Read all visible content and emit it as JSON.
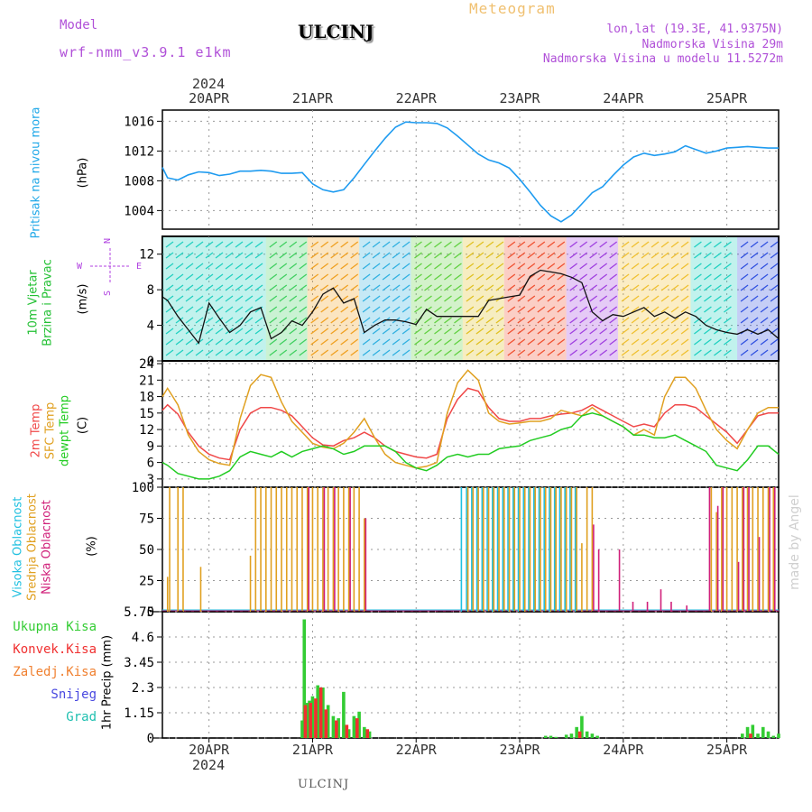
{
  "header": {
    "model_label": "Model",
    "model_name": "wrf-nmm_v3.9.1 e1km",
    "station": "ULCINJ",
    "product": "Meteogram",
    "lonlat": "lon,lat (19.3E, 41.9375N)",
    "elevation": "Nadmorska Visina 29m",
    "model_elevation": "Nadmorska Visina u modelu 11.5272m",
    "year_top": "2024",
    "year_bottom": "2024",
    "footer_station": "ULCINJ",
    "watermark": "made by Angel"
  },
  "colors": {
    "pressure": "#1e9bf0",
    "wind_green": "#22c033",
    "temp": "#f04848",
    "sfc": "#e0a020",
    "dew": "#22cc22",
    "high_cloud": "#20c0e0",
    "mid_cloud": "#e0a020",
    "low_cloud": "#d0207a",
    "total_precip": "#33cc33",
    "conv_precip": "#f03030",
    "frozen": "#f08030",
    "snow": "#4848e0",
    "hail": "#20c0b0",
    "wind_mag": "#b040e0"
  },
  "chart_data": [
    {
      "type": "line",
      "panel": "pressure",
      "ylabel_lines": [
        "Pritisak na nivou mora"
      ],
      "unit": "(hPa)",
      "ylim": [
        1001.5,
        1017.5
      ],
      "yticks": [
        1004,
        1008,
        1012,
        1016
      ],
      "grid": true,
      "x_days": [
        19.55,
        19.6,
        19.7,
        19.8,
        19.9,
        20.0,
        20.1,
        20.2,
        20.3,
        20.4,
        20.5,
        20.6,
        20.7,
        20.8,
        20.9,
        21.0,
        21.1,
        21.2,
        21.3,
        21.4,
        21.5,
        21.6,
        21.7,
        21.8,
        21.9,
        22.0,
        22.1,
        22.2,
        22.3,
        22.4,
        22.5,
        22.6,
        22.7,
        22.8,
        22.9,
        23.0,
        23.1,
        23.2,
        23.3,
        23.4,
        23.5,
        23.6,
        23.7,
        23.8,
        23.9,
        24.0,
        24.1,
        24.2,
        24.3,
        24.4,
        24.5,
        24.6,
        24.7,
        24.8,
        24.9,
        25.0,
        25.1,
        25.2,
        25.3,
        25.4,
        25.5
      ],
      "values": [
        1009.8,
        1008.4,
        1008.1,
        1008.8,
        1009.2,
        1009.1,
        1008.7,
        1008.9,
        1009.3,
        1009.3,
        1009.4,
        1009.3,
        1009.0,
        1009.0,
        1009.1,
        1007.6,
        1006.8,
        1006.5,
        1006.8,
        1008.4,
        1010.2,
        1012.0,
        1013.7,
        1015.2,
        1015.9,
        1015.8,
        1015.8,
        1015.7,
        1015.1,
        1014.0,
        1012.8,
        1011.6,
        1010.8,
        1010.4,
        1009.7,
        1008.2,
        1006.5,
        1004.7,
        1003.3,
        1002.5,
        1003.4,
        1004.9,
        1006.4,
        1007.2,
        1008.7,
        1010.1,
        1011.2,
        1011.7,
        1011.4,
        1011.6,
        1011.9,
        1012.7,
        1012.2,
        1011.7,
        1012.0,
        1012.4,
        1012.5,
        1012.6,
        1012.5,
        1012.4,
        1012.4
      ]
    },
    {
      "type": "line",
      "panel": "wind",
      "ylabel_lines": [
        "10m Vjetar",
        "Brzina i Pravac"
      ],
      "unit": "(m/s)",
      "ylim": [
        0,
        14
      ],
      "yticks": [
        0,
        4,
        8,
        12
      ],
      "grid": true,
      "compass": [
        "N",
        "W",
        "E",
        "S"
      ],
      "x_days": [
        19.55,
        19.6,
        19.7,
        19.8,
        19.9,
        20.0,
        20.1,
        20.2,
        20.3,
        20.4,
        20.5,
        20.6,
        20.7,
        20.8,
        20.9,
        21.0,
        21.1,
        21.2,
        21.3,
        21.4,
        21.5,
        21.6,
        21.7,
        21.8,
        21.9,
        22.0,
        22.1,
        22.2,
        22.3,
        22.4,
        22.5,
        22.6,
        22.7,
        22.8,
        22.9,
        23.0,
        23.1,
        23.2,
        23.3,
        23.4,
        23.5,
        23.6,
        23.7,
        23.8,
        23.9,
        24.0,
        24.1,
        24.2,
        24.3,
        24.4,
        24.5,
        24.6,
        24.7,
        24.8,
        24.9,
        25.0,
        25.1,
        25.2,
        25.3,
        25.4,
        25.5
      ],
      "values": [
        7.2,
        6.8,
        5.0,
        3.5,
        2.0,
        6.5,
        4.8,
        3.2,
        4.0,
        5.5,
        6.0,
        2.5,
        3.2,
        4.5,
        4.0,
        5.5,
        7.5,
        8.2,
        6.5,
        7.0,
        3.2,
        4.0,
        4.6,
        4.6,
        4.4,
        4.1,
        5.8,
        5.0,
        5.0,
        5.0,
        5.0,
        5.0,
        6.8,
        7.0,
        7.2,
        7.4,
        9.5,
        10.2,
        10.0,
        9.8,
        9.4,
        8.8,
        5.5,
        4.5,
        5.2,
        5.0,
        5.5,
        6.0,
        5.0,
        5.5,
        4.8,
        5.5,
        5.0,
        4.0,
        3.5,
        3.2,
        3.0,
        3.5,
        3.0,
        3.5,
        2.5
      ],
      "direction_bands": [
        {
          "from_day": 19.55,
          "to_day": 20.55,
          "color": "#20d0c0"
        },
        {
          "from_day": 20.55,
          "to_day": 20.95,
          "color": "#40d060"
        },
        {
          "from_day": 20.95,
          "to_day": 21.45,
          "color": "#f0a020"
        },
        {
          "from_day": 21.45,
          "to_day": 21.95,
          "color": "#30b0e0"
        },
        {
          "from_day": 21.95,
          "to_day": 22.45,
          "color": "#60d040"
        },
        {
          "from_day": 22.45,
          "to_day": 22.85,
          "color": "#e0c020"
        },
        {
          "from_day": 22.85,
          "to_day": 23.45,
          "color": "#f05030"
        },
        {
          "from_day": 23.45,
          "to_day": 23.95,
          "color": "#a040e0"
        },
        {
          "from_day": 23.95,
          "to_day": 24.65,
          "color": "#f0c030"
        },
        {
          "from_day": 24.65,
          "to_day": 25.1,
          "color": "#20d0c0"
        },
        {
          "from_day": 25.1,
          "to_day": 25.5,
          "color": "#3050e0"
        }
      ]
    },
    {
      "type": "line",
      "panel": "temperature",
      "ylabel_lines": [
        "2m Temp",
        "SFC Temp",
        "dewpt Temp"
      ],
      "unit": "(C)",
      "ylim": [
        1.5,
        24.5
      ],
      "yticks": [
        3,
        6,
        9,
        12,
        15,
        18,
        21,
        24
      ],
      "grid": true,
      "x_days": [
        19.55,
        19.6,
        19.7,
        19.8,
        19.9,
        20.0,
        20.1,
        20.2,
        20.3,
        20.4,
        20.5,
        20.6,
        20.7,
        20.8,
        20.9,
        21.0,
        21.1,
        21.2,
        21.3,
        21.4,
        21.5,
        21.6,
        21.7,
        21.8,
        21.9,
        22.0,
        22.1,
        22.2,
        22.3,
        22.4,
        22.5,
        22.6,
        22.7,
        22.8,
        22.9,
        23.0,
        23.1,
        23.2,
        23.3,
        23.4,
        23.5,
        23.6,
        23.7,
        23.8,
        23.9,
        24.0,
        24.1,
        24.2,
        24.3,
        24.4,
        24.5,
        24.6,
        24.7,
        24.8,
        24.9,
        25.0,
        25.1,
        25.2,
        25.3,
        25.4,
        25.5
      ],
      "series": [
        {
          "name": "2m Temp",
          "color": "#f04848",
          "values": [
            15.5,
            16.5,
            14.8,
            11.5,
            9.0,
            7.5,
            6.8,
            6.5,
            12.0,
            15.0,
            16.0,
            16.0,
            15.5,
            14.5,
            12.5,
            10.5,
            9.2,
            9.0,
            10.0,
            10.5,
            11.5,
            10.5,
            9.0,
            8.0,
            7.5,
            7.0,
            6.8,
            7.5,
            14.0,
            17.5,
            19.5,
            19.0,
            16.0,
            14.0,
            13.5,
            13.5,
            14.0,
            14.0,
            14.5,
            14.8,
            15.0,
            15.5,
            16.5,
            15.5,
            14.5,
            13.5,
            12.5,
            13.0,
            12.5,
            15.0,
            16.5,
            16.5,
            16.0,
            14.5,
            13.0,
            11.5,
            9.5,
            12.0,
            14.5,
            15.0,
            15.0
          ]
        },
        {
          "name": "SFC Temp",
          "color": "#e0a020",
          "values": [
            18.0,
            19.5,
            16.5,
            11.0,
            8.0,
            6.5,
            5.8,
            5.5,
            14.0,
            20.0,
            22.0,
            21.5,
            17.0,
            13.5,
            11.5,
            9.5,
            8.8,
            8.5,
            9.5,
            11.5,
            14.0,
            10.5,
            7.5,
            6.0,
            5.5,
            5.0,
            5.3,
            6.0,
            15.0,
            20.5,
            22.8,
            21.0,
            15.0,
            13.5,
            13.0,
            13.2,
            13.5,
            13.5,
            14.0,
            15.5,
            15.0,
            14.5,
            16.0,
            14.5,
            13.5,
            12.5,
            11.0,
            12.0,
            11.0,
            18.0,
            21.5,
            21.5,
            19.5,
            15.5,
            12.0,
            10.0,
            8.5,
            12.0,
            15.0,
            16.0,
            16.0
          ]
        },
        {
          "name": "dewpt Temp",
          "color": "#22cc22",
          "values": [
            6.0,
            5.5,
            4.0,
            3.5,
            3.0,
            3.0,
            3.5,
            4.5,
            7.0,
            8.0,
            7.5,
            7.0,
            8.0,
            7.0,
            8.0,
            8.5,
            9.0,
            8.5,
            7.5,
            8.0,
            9.0,
            9.0,
            9.0,
            8.0,
            6.0,
            5.0,
            4.5,
            5.5,
            7.0,
            7.5,
            7.0,
            7.5,
            7.5,
            8.5,
            8.8,
            9.0,
            10.0,
            10.5,
            11.0,
            12.0,
            12.5,
            14.5,
            15.0,
            14.5,
            13.5,
            12.5,
            11.0,
            11.0,
            10.5,
            10.5,
            11.0,
            10.0,
            9.0,
            8.0,
            5.5,
            5.0,
            4.5,
            6.5,
            9.0,
            9.0,
            7.5
          ]
        }
      ]
    },
    {
      "type": "bar",
      "panel": "cloud",
      "ylabel_lines": [
        "Visoka Oblacnost",
        "Srednja Oblacnost",
        "Niska Oblacnost"
      ],
      "unit": "(%)",
      "ylim": [
        0,
        100
      ],
      "yticks": [
        0,
        25,
        50,
        75,
        100
      ],
      "grid": true,
      "series": [
        {
          "name": "Visoka Oblacnost",
          "color": "#20c0e0",
          "x_days": [
            22.45,
            22.5,
            22.55,
            22.6,
            22.65,
            22.7,
            22.75,
            22.8,
            22.85,
            22.9,
            22.95,
            23.0,
            23.05,
            23.1,
            23.15,
            23.2,
            23.25,
            23.3,
            23.35,
            23.4,
            23.45,
            23.5,
            23.55
          ],
          "values": [
            100,
            100,
            100,
            100,
            100,
            100,
            100,
            100,
            100,
            100,
            100,
            100,
            100,
            100,
            100,
            100,
            100,
            100,
            100,
            100,
            100,
            100,
            100
          ]
        },
        {
          "name": "Srednja Oblacnost",
          "color": "#e0a020",
          "x_days": [
            19.6,
            19.62,
            19.7,
            19.75,
            19.92,
            20.4,
            20.45,
            20.5,
            20.55,
            20.6,
            20.65,
            20.7,
            20.75,
            20.8,
            20.85,
            20.9,
            20.95,
            21.0,
            21.05,
            21.1,
            21.15,
            21.2,
            21.25,
            21.3,
            21.35,
            21.4,
            21.45,
            21.5,
            22.5,
            22.55,
            22.6,
            22.65,
            22.7,
            22.75,
            22.8,
            22.85,
            22.9,
            22.95,
            23.0,
            23.05,
            23.1,
            23.15,
            23.2,
            23.25,
            23.3,
            23.35,
            23.4,
            23.45,
            23.5,
            23.55,
            23.6,
            23.65,
            23.7,
            24.85,
            24.9,
            24.95,
            25.0,
            25.05,
            25.1,
            25.15,
            25.2,
            25.25,
            25.3,
            25.35,
            25.4,
            25.45
          ],
          "values": [
            28,
            100,
            100,
            100,
            36,
            45,
            100,
            100,
            100,
            100,
            100,
            100,
            100,
            100,
            100,
            100,
            100,
            100,
            100,
            100,
            100,
            100,
            100,
            100,
            100,
            100,
            100,
            75,
            100,
            100,
            100,
            100,
            100,
            100,
            100,
            100,
            100,
            100,
            100,
            100,
            100,
            100,
            100,
            100,
            100,
            100,
            100,
            100,
            100,
            100,
            55,
            100,
            100,
            100,
            80,
            100,
            100,
            100,
            100,
            100,
            100,
            100,
            100,
            100,
            100,
            100
          ]
        },
        {
          "name": "Niska Oblacnost",
          "color": "#d0207a",
          "x_days": [
            20.95,
            21.1,
            21.2,
            21.35,
            21.5,
            23.7,
            23.75,
            23.95,
            24.08,
            24.22,
            24.35,
            24.45,
            24.6,
            24.82,
            24.9,
            24.95,
            25.1,
            25.15,
            25.2,
            25.3,
            25.4,
            25.45
          ],
          "values": [
            100,
            100,
            100,
            100,
            75,
            70,
            50,
            50,
            8,
            8,
            18,
            8,
            5,
            100,
            85,
            100,
            40,
            100,
            100,
            60,
            100,
            100
          ]
        }
      ]
    },
    {
      "type": "bar",
      "panel": "precip",
      "ylabel_lines": [
        "1hr Precip (mm)"
      ],
      "unit": "(mm)",
      "ylim": [
        0,
        5.75
      ],
      "yticks": [
        0,
        1.15,
        2.3,
        3.45,
        4.6,
        5.75
      ],
      "ytick_labels": [
        "0",
        "1.15",
        "2.3",
        "3.45",
        "4.6",
        "5.75"
      ],
      "grid": true,
      "legend": [
        "Ukupna Kisa",
        "Konvek.Kisa",
        "Zaledj.Kisa",
        "Snijeg",
        "Grad"
      ],
      "series": [
        {
          "name": "Ukupna Kisa",
          "color": "#33cc33",
          "x_days": [
            20.9,
            20.92,
            20.95,
            20.97,
            21.0,
            21.05,
            21.1,
            21.15,
            21.2,
            21.25,
            21.3,
            21.35,
            21.4,
            21.45,
            21.5,
            21.55,
            23.25,
            23.3,
            23.35,
            23.45,
            23.5,
            23.55,
            23.6,
            23.65,
            23.7,
            23.75,
            25.15,
            25.2,
            25.25,
            25.3,
            25.35,
            25.4,
            25.45,
            25.5
          ],
          "values": [
            0.8,
            5.4,
            1.6,
            1.7,
            1.9,
            2.4,
            2.3,
            1.5,
            1.0,
            0.9,
            2.1,
            0.4,
            1.0,
            1.2,
            0.5,
            0.3,
            0.1,
            0.1,
            0.05,
            0.15,
            0.2,
            0.5,
            1.0,
            0.3,
            0.2,
            0.1,
            0.2,
            0.5,
            0.6,
            0.2,
            0.5,
            0.3,
            0.1,
            0.2
          ]
        },
        {
          "name": "Konvek.Kisa",
          "color": "#f03030",
          "x_days": [
            20.93,
            20.98,
            21.03,
            21.08,
            21.13,
            21.23,
            21.33,
            21.43,
            21.53,
            23.58,
            25.23
          ],
          "values": [
            1.5,
            1.6,
            1.8,
            2.3,
            1.3,
            0.8,
            0.6,
            0.9,
            0.4,
            0.3,
            0.2
          ]
        },
        {
          "name": "Zaledj.Kisa",
          "color": "#f08030",
          "x_days": [],
          "values": []
        },
        {
          "name": "Snijeg",
          "color": "#4848e0",
          "x_days": [],
          "values": []
        },
        {
          "name": "Grad",
          "color": "#20c0b0",
          "x_days": [],
          "values": []
        }
      ]
    }
  ],
  "x_axis": {
    "ticks": [
      {
        "day": 20,
        "label": "20APR"
      },
      {
        "day": 21,
        "label": "21APR"
      },
      {
        "day": 22,
        "label": "22APR"
      },
      {
        "day": 23,
        "label": "23APR"
      },
      {
        "day": 24,
        "label": "24APR"
      },
      {
        "day": 25,
        "label": "25APR"
      }
    ],
    "range_days": [
      19.55,
      25.5
    ]
  }
}
